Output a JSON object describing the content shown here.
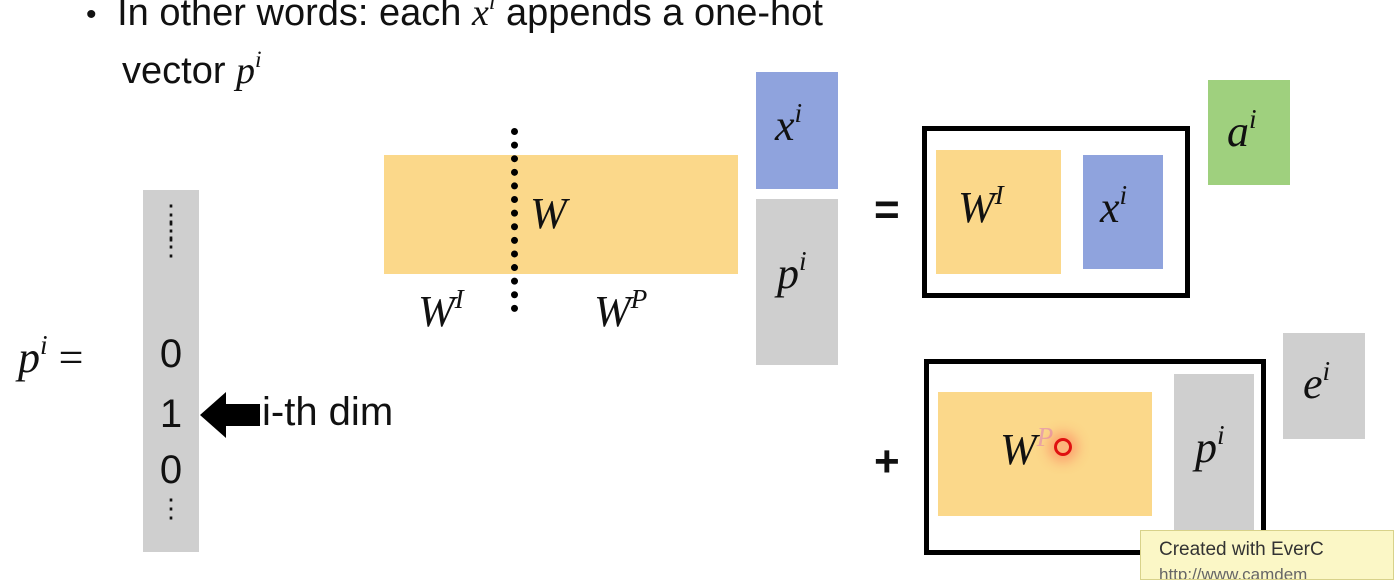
{
  "bullet": {
    "marker": "•",
    "line1_prefix": "In other words: each",
    "line1_var": "x",
    "line1_sup": "i",
    "line1_suffix": "appends a one-hot",
    "line2_prefix": "vector",
    "line2_var": "p",
    "line2_sup": "i"
  },
  "matrix_W": {
    "label": "W",
    "left_label": "W",
    "left_sup": "I",
    "right_label": "W",
    "right_sup": "P"
  },
  "stacked_input": {
    "top": {
      "var": "x",
      "sup": "i"
    },
    "bottom": {
      "var": "p",
      "sup": "i"
    }
  },
  "equals_sign": "=",
  "plus_sign": "+",
  "term1": {
    "matrix": {
      "var": "W",
      "sup": "I"
    },
    "vector": {
      "var": "x",
      "sup": "i"
    },
    "result": {
      "var": "a",
      "sup": "i"
    }
  },
  "term2": {
    "matrix": {
      "var": "W",
      "sup": "P"
    },
    "vector": {
      "var": "p",
      "sup": "i"
    },
    "result": {
      "var": "e",
      "sup": "i"
    }
  },
  "onehot": {
    "lhs_var": "p",
    "lhs_sup": "i",
    "lhs_eq": "=",
    "entries": [
      "0",
      "1",
      "0"
    ],
    "vdots": "⋮",
    "arrow_label": "i-th dim"
  },
  "watermark": {
    "line1": "Created with EverC",
    "line2": "http://www.camdem"
  },
  "colors": {
    "orange": "#fbd88a",
    "blue": "#8fa3dd",
    "gray": "#cfcfcf",
    "green": "#9fd07e"
  }
}
